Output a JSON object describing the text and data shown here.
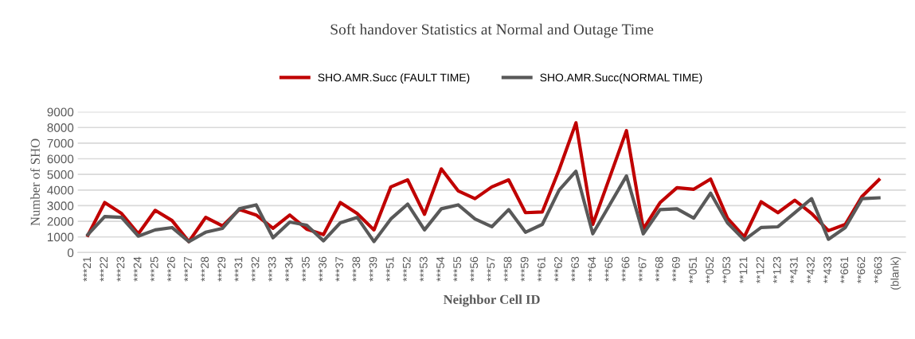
{
  "chart_data": {
    "type": "line",
    "title": "Soft handover Statistics at Normal and Outage Time",
    "xlabel": "Neighbor Cell ID",
    "ylabel": "Number of SHO",
    "categories": [
      "***21",
      "***22",
      "***23",
      "***24",
      "***25",
      "***26",
      "***27",
      "***28",
      "***29",
      "***31",
      "***32",
      "***33",
      "***34",
      "***35",
      "***36",
      "***37",
      "***38",
      "***39",
      "***51",
      "***52",
      "***53",
      "***54",
      "***55",
      "***56",
      "***57",
      "***58",
      "***59",
      "***61",
      "***62",
      "***63",
      "***64",
      "***65",
      "***66",
      "***67",
      "***68",
      "***69",
      "**051",
      "**052",
      "**053",
      "**121",
      "**122",
      "**123",
      "**431",
      "**432",
      "**433",
      "**661",
      "**662",
      "**663",
      "(blank)"
    ],
    "series": [
      {
        "name": "SHO.AMR.Succ (FAULT TIME)",
        "color": "#c00000",
        "values": [
          1100,
          3200,
          2500,
          1200,
          2700,
          2050,
          700,
          2250,
          1700,
          2750,
          2400,
          1550,
          2400,
          1500,
          1150,
          3200,
          2500,
          1450,
          4200,
          4650,
          2450,
          5350,
          3950,
          3450,
          4200,
          4650,
          2550,
          2600,
          5300,
          8300,
          1800,
          4800,
          7800,
          1500,
          3200,
          4150,
          4050,
          4700,
          2200,
          1000,
          3250,
          2550,
          3350,
          2500,
          1400,
          1800,
          3600,
          4650,
          null
        ]
      },
      {
        "name": "SHO.AMR.Succ(NORMAL TIME)",
        "color": "#595959",
        "values": [
          1150,
          2300,
          2250,
          1050,
          1450,
          1600,
          700,
          1300,
          1550,
          2800,
          3050,
          950,
          1950,
          1750,
          750,
          1900,
          2250,
          700,
          2150,
          3100,
          1450,
          2800,
          3050,
          2150,
          1650,
          2750,
          1300,
          1800,
          4000,
          5200,
          1200,
          3050,
          4900,
          1200,
          2750,
          2800,
          2200,
          3800,
          1900,
          800,
          1600,
          1650,
          2550,
          3450,
          850,
          1600,
          3450,
          3500,
          null
        ]
      }
    ],
    "ylim": [
      0,
      9000
    ],
    "yticks": [
      0,
      1000,
      2000,
      3000,
      4000,
      5000,
      6000,
      7000,
      8000,
      9000
    ],
    "grid": "y",
    "legend": "top",
    "marker": "none",
    "line_style": "solid"
  }
}
